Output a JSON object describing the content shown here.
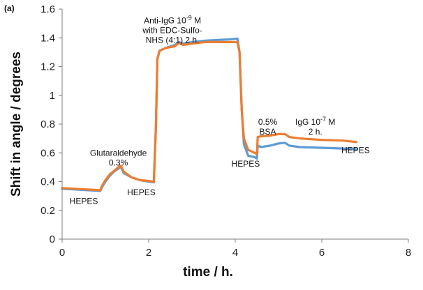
{
  "chart_data": {
    "type": "line",
    "panel_label": "(a)",
    "xlabel": "time / h.",
    "ylabel": "Shift in angle / degrees",
    "xlim": [
      0,
      8
    ],
    "ylim": [
      0,
      1.6
    ],
    "x_ticks": [
      "0",
      "2",
      "4",
      "6",
      "8"
    ],
    "y_ticks": [
      "0",
      "0.2",
      "0.4",
      "0.6",
      "0.8",
      "1",
      "1.2",
      "1.4",
      "1.6"
    ],
    "grid": false,
    "series": [
      {
        "color": "#5B9BD5",
        "points": [
          [
            0,
            0.35
          ],
          [
            0.3,
            0.345
          ],
          [
            0.6,
            0.34
          ],
          [
            0.88,
            0.335
          ],
          [
            0.92,
            0.36
          ],
          [
            1.0,
            0.4
          ],
          [
            1.1,
            0.44
          ],
          [
            1.2,
            0.47
          ],
          [
            1.3,
            0.49
          ],
          [
            1.36,
            0.5
          ],
          [
            1.42,
            0.46
          ],
          [
            1.6,
            0.43
          ],
          [
            1.8,
            0.41
          ],
          [
            2.0,
            0.4
          ],
          [
            2.12,
            0.395
          ],
          [
            2.17,
            0.8
          ],
          [
            2.2,
            1.25
          ],
          [
            2.25,
            1.31
          ],
          [
            2.4,
            1.33
          ],
          [
            2.6,
            1.35
          ],
          [
            2.7,
            1.37
          ],
          [
            2.8,
            1.36
          ],
          [
            3.0,
            1.37
          ],
          [
            3.3,
            1.38
          ],
          [
            3.6,
            1.385
          ],
          [
            3.9,
            1.39
          ],
          [
            4.05,
            1.395
          ],
          [
            4.1,
            1.3
          ],
          [
            4.15,
            0.9
          ],
          [
            4.2,
            0.66
          ],
          [
            4.3,
            0.58
          ],
          [
            4.45,
            0.57
          ],
          [
            4.5,
            0.56
          ],
          [
            4.52,
            0.65
          ],
          [
            4.6,
            0.64
          ],
          [
            4.8,
            0.65
          ],
          [
            5.0,
            0.665
          ],
          [
            5.15,
            0.67
          ],
          [
            5.25,
            0.65
          ],
          [
            5.5,
            0.64
          ],
          [
            6.0,
            0.635
          ],
          [
            6.5,
            0.63
          ],
          [
            6.8,
            0.625
          ]
        ]
      },
      {
        "color": "#ED7D31",
        "points": [
          [
            0,
            0.355
          ],
          [
            0.3,
            0.35
          ],
          [
            0.6,
            0.345
          ],
          [
            0.88,
            0.34
          ],
          [
            0.92,
            0.37
          ],
          [
            1.0,
            0.41
          ],
          [
            1.1,
            0.45
          ],
          [
            1.2,
            0.475
          ],
          [
            1.3,
            0.5
          ],
          [
            1.36,
            0.51
          ],
          [
            1.42,
            0.47
          ],
          [
            1.6,
            0.43
          ],
          [
            1.8,
            0.41
          ],
          [
            2.0,
            0.405
          ],
          [
            2.12,
            0.4
          ],
          [
            2.17,
            0.8
          ],
          [
            2.2,
            1.25
          ],
          [
            2.25,
            1.31
          ],
          [
            2.4,
            1.33
          ],
          [
            2.6,
            1.34
          ],
          [
            2.7,
            1.365
          ],
          [
            2.8,
            1.35
          ],
          [
            3.0,
            1.36
          ],
          [
            3.3,
            1.37
          ],
          [
            3.6,
            1.37
          ],
          [
            3.9,
            1.37
          ],
          [
            4.05,
            1.37
          ],
          [
            4.1,
            1.3
          ],
          [
            4.15,
            0.9
          ],
          [
            4.2,
            0.7
          ],
          [
            4.3,
            0.62
          ],
          [
            4.45,
            0.6
          ],
          [
            4.5,
            0.59
          ],
          [
            4.52,
            0.71
          ],
          [
            4.6,
            0.715
          ],
          [
            4.8,
            0.72
          ],
          [
            5.0,
            0.73
          ],
          [
            5.15,
            0.73
          ],
          [
            5.25,
            0.71
          ],
          [
            5.5,
            0.7
          ],
          [
            6.0,
            0.69
          ],
          [
            6.5,
            0.685
          ],
          [
            6.8,
            0.675
          ]
        ]
      }
    ],
    "annotations": [
      {
        "lines": [
          "HEPES"
        ],
        "x": 0.5,
        "y": 0.245
      },
      {
        "lines": [
          "Glutaraldehyde",
          "0.3%"
        ],
        "x": 1.3,
        "y": 0.58
      },
      {
        "lines": [
          "HEPES"
        ],
        "x": 1.83,
        "y": 0.305
      },
      {
        "lines": [
          "Anti-IgG 10-9 M",
          "with EDC-Sulfo-",
          "NHS (4:1) 2 h."
        ],
        "x": 2.55,
        "y": 1.5
      },
      {
        "lines": [
          "HEPES"
        ],
        "x": 4.24,
        "y": 0.505
      },
      {
        "lines": [
          "0.5%",
          "BSA"
        ],
        "x": 4.75,
        "y": 0.795
      },
      {
        "lines": [
          "IgG 10-7 M",
          "2 h."
        ],
        "x": 5.85,
        "y": 0.795
      },
      {
        "lines": [
          "HEPES"
        ],
        "x": 6.78,
        "y": 0.6
      }
    ]
  }
}
